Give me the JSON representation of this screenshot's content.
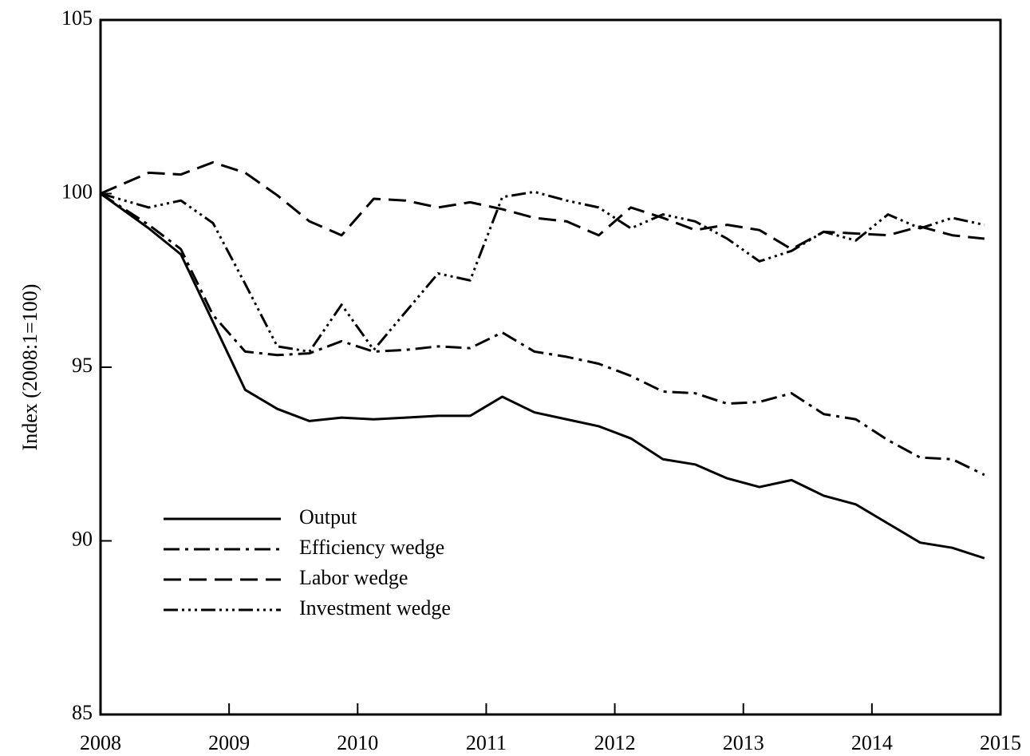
{
  "chart_data": {
    "type": "line",
    "y_label": "Index (2008:1=100)",
    "x": [
      2008,
      2008.375,
      2008.625,
      2008.875,
      2009.125,
      2009.375,
      2009.625,
      2009.875,
      2010.125,
      2010.375,
      2010.625,
      2010.875,
      2011.125,
      2011.375,
      2011.625,
      2011.875,
      2012.125,
      2012.375,
      2012.625,
      2012.875,
      2013.125,
      2013.375,
      2013.625,
      2013.875,
      2014.125,
      2014.375,
      2014.625,
      2014.875
    ],
    "series": [
      {
        "name": "Output",
        "color": "#000000",
        "dash": "none",
        "values": [
          100,
          99.0,
          98.25,
          96.3,
          94.35,
          93.8,
          93.45,
          93.55,
          93.5,
          93.55,
          93.6,
          93.6,
          94.15,
          93.7,
          93.5,
          93.3,
          92.95,
          92.35,
          92.2,
          91.8,
          91.55,
          91.75,
          91.3,
          91.05,
          90.5,
          89.95,
          89.8,
          89.5
        ]
      },
      {
        "name": "Efficiency wedge",
        "color": "#000000",
        "dash": "20,7,4,7",
        "values": [
          100,
          99.1,
          98.4,
          96.5,
          95.45,
          95.35,
          95.4,
          95.75,
          95.45,
          95.5,
          95.6,
          95.55,
          96.0,
          95.45,
          95.3,
          95.1,
          94.75,
          94.3,
          94.25,
          93.95,
          94.0,
          94.25,
          93.65,
          93.5,
          92.9,
          92.4,
          92.35,
          91.9
        ]
      },
      {
        "name": "Labor wedge",
        "color": "#000000",
        "dash": "22,10",
        "values": [
          100,
          100.6,
          100.55,
          100.9,
          100.6,
          99.95,
          99.2,
          98.8,
          99.85,
          99.8,
          99.6,
          99.75,
          99.55,
          99.3,
          99.2,
          98.8,
          99.6,
          99.3,
          98.95,
          99.1,
          98.95,
          98.4,
          98.9,
          98.85,
          98.8,
          99.05,
          98.8,
          98.7
        ]
      },
      {
        "name": "Investment wedge",
        "color": "#000000",
        "dash": "18,5,3,5,3,5,3,5",
        "values": [
          100,
          99.6,
          99.8,
          99.15,
          97.4,
          95.6,
          95.45,
          96.8,
          95.5,
          96.6,
          97.7,
          97.5,
          99.9,
          100.05,
          99.8,
          99.6,
          99.0,
          99.4,
          99.2,
          98.7,
          98.05,
          98.35,
          98.9,
          98.65,
          99.4,
          99.0,
          99.3,
          99.1
        ]
      }
    ],
    "xlim": [
      2008,
      2015
    ],
    "xticks": [
      2008,
      2009,
      2010,
      2011,
      2012,
      2013,
      2014,
      2015
    ],
    "ylim": [
      85,
      105
    ],
    "yticks": [
      85,
      90,
      95,
      100,
      105
    ],
    "grid": false,
    "legend": "lower left"
  }
}
